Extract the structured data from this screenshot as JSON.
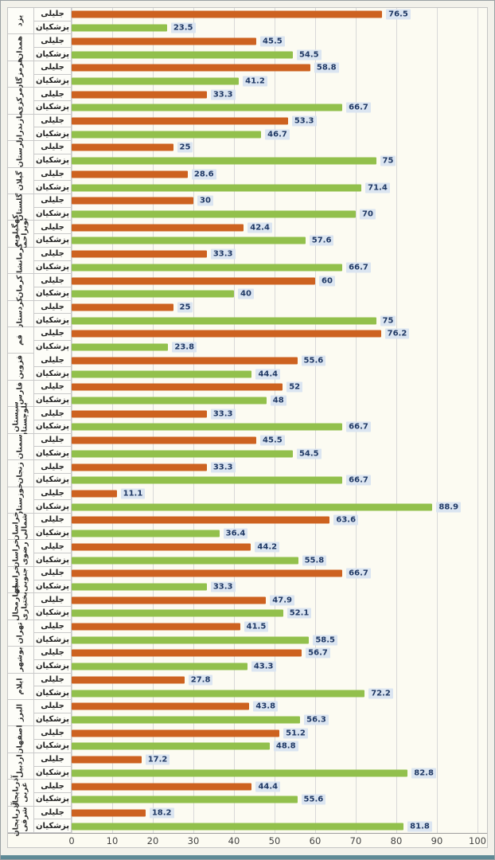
{
  "chart_data": {
    "type": "bar",
    "orientation": "horizontal",
    "title": "",
    "xlabel": "",
    "ylabel": "",
    "xlim": [
      0,
      100
    ],
    "x_ticks": [
      0,
      10,
      20,
      30,
      40,
      50,
      60,
      70,
      80,
      90,
      100
    ],
    "grid": true,
    "series": [
      {
        "name": "جلیلی",
        "color": "#cd6220"
      },
      {
        "name": "پزشکیان",
        "color": "#92c04c"
      }
    ],
    "categories": [
      "یزد",
      "همدان",
      "هرمزگان",
      "مرکزی",
      "مازندران",
      "لرستان",
      "گیلان",
      "گلستان",
      "کهگیلویه و بویراحمد",
      "کرمانشاه",
      "کرمان",
      "کردستان",
      "قم",
      "قزوین",
      "فارس",
      "سیستان و بلوچستان",
      "سمنان",
      "زنجان",
      "خوزستان",
      "خراسان شمالی",
      "خراسان رضوی",
      "خراسان جنوبی",
      "چهارمحال و بختیاری",
      "تهران",
      "بوشهر",
      "ایلام",
      "البرز",
      "اصفهان",
      "اردبیل",
      "آذربایجان غربی",
      "آذربایجان شرقی"
    ],
    "values": [
      [
        76.5,
        23.5
      ],
      [
        45.5,
        54.5
      ],
      [
        58.8,
        41.2
      ],
      [
        33.3,
        66.7
      ],
      [
        53.3,
        46.7
      ],
      [
        25,
        75
      ],
      [
        28.6,
        71.4
      ],
      [
        30,
        70
      ],
      [
        42.4,
        57.6
      ],
      [
        33.3,
        66.7
      ],
      [
        60,
        40
      ],
      [
        25,
        75
      ],
      [
        76.2,
        23.8
      ],
      [
        55.6,
        44.4
      ],
      [
        52,
        48
      ],
      [
        33.3,
        66.7
      ],
      [
        45.5,
        54.5
      ],
      [
        33.3,
        66.7
      ],
      [
        11.1,
        88.9
      ],
      [
        63.6,
        36.4
      ],
      [
        44.2,
        55.8
      ],
      [
        66.7,
        33.3
      ],
      [
        47.9,
        52.1
      ],
      [
        41.5,
        58.5
      ],
      [
        56.7,
        43.3
      ],
      [
        27.8,
        72.2
      ],
      [
        43.8,
        56.3
      ],
      [
        51.2,
        48.8
      ],
      [
        17.2,
        82.8
      ],
      [
        44.4,
        55.6
      ],
      [
        18.2,
        81.8
      ]
    ],
    "value_label_bg": "#dbe5f1",
    "value_label_color": "#1f3864",
    "gridline_color": "#d8d8d8"
  }
}
